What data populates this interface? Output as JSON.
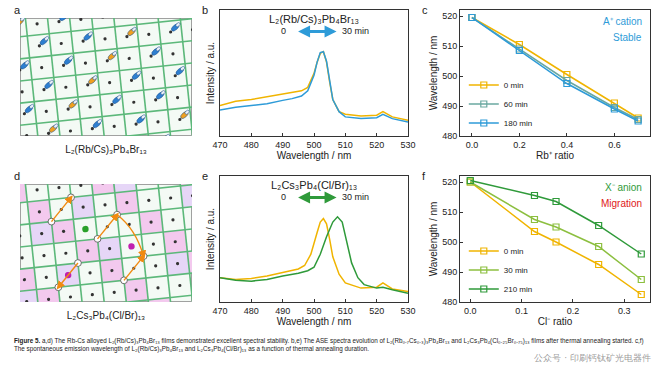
{
  "chart_data": [
    {
      "panel": "b",
      "type": "line",
      "title": "L₂(Rb/Cs)₃Pb₄Br₁₃",
      "x_label": "Wavelength / nm",
      "y_label": "Intensity / a.u.",
      "xlim": [
        470,
        530
      ],
      "xticks": [
        470,
        480,
        490,
        500,
        510,
        520,
        530
      ],
      "ylim": [
        0,
        1.45
      ],
      "yticks": [],
      "tick_labels": "x",
      "grid": false,
      "series": [
        {
          "name": "0",
          "color": "#f0b400",
          "line_style": "solid",
          "x": [
            470,
            475,
            480,
            485,
            490,
            493,
            496,
            498,
            500,
            501,
            502,
            503,
            504,
            505,
            506,
            508,
            510,
            515,
            520,
            522,
            525,
            530
          ],
          "values": [
            0.35,
            0.4,
            0.42,
            0.45,
            0.48,
            0.5,
            0.52,
            0.56,
            0.72,
            0.85,
            0.95,
            0.97,
            0.85,
            0.62,
            0.42,
            0.28,
            0.25,
            0.23,
            0.24,
            0.28,
            0.22,
            0.18
          ]
        },
        {
          "name": "30 min",
          "color": "#2e9bd8",
          "line_style": "solid",
          "x": [
            470,
            475,
            480,
            485,
            490,
            493,
            496,
            498,
            500,
            501,
            502,
            503,
            504,
            505,
            506,
            508,
            510,
            515,
            520,
            522,
            525,
            530
          ],
          "values": [
            0.3,
            0.33,
            0.35,
            0.37,
            0.41,
            0.43,
            0.46,
            0.52,
            0.7,
            0.85,
            0.96,
            0.97,
            0.86,
            0.63,
            0.42,
            0.28,
            0.22,
            0.2,
            0.21,
            0.25,
            0.2,
            0.16
          ]
        }
      ]
    },
    {
      "panel": "c",
      "type": "line",
      "x_label": "Rb⁺ ratio",
      "y_label": "Wavelength / nm",
      "xlim": [
        -0.05,
        0.75
      ],
      "xticks": [
        {
          "value": 0,
          "label": "0.0"
        },
        0.2,
        0.4,
        0.6
      ],
      "ylim": [
        480,
        522
      ],
      "yticks": [
        480,
        490,
        500,
        510,
        520
      ],
      "grid": false,
      "legend": "top-left",
      "marker": "square",
      "annotations": [
        {
          "text": "A⁺ cation",
          "color": "#2e9bd8"
        },
        {
          "text": "Stable",
          "color": "#2e9bd8"
        }
      ],
      "series": [
        {
          "name": "0 min",
          "color": "#f0b400",
          "x": [
            0,
            0.2,
            0.4,
            0.6,
            0.7
          ],
          "values": [
            519.5,
            510.5,
            500.5,
            491,
            486
          ]
        },
        {
          "name": "60 min",
          "color": "#6aa8a0",
          "x": [
            0,
            0.2,
            0.4,
            0.6,
            0.7
          ],
          "values": [
            519.5,
            509,
            498.5,
            489.5,
            485.5
          ]
        },
        {
          "name": "180 min",
          "color": "#2e9bd8",
          "x": [
            0,
            0.2,
            0.4,
            0.6,
            0.7
          ],
          "values": [
            519.5,
            508.5,
            497.5,
            489,
            485
          ]
        }
      ]
    },
    {
      "panel": "e",
      "type": "line",
      "title": "L₂Cs₃Pb₄(Cl/Br)₁₃",
      "x_label": "Wavelength / nm",
      "y_label": "Intensity / a.u.",
      "xlim": [
        470,
        530
      ],
      "xticks": [
        470,
        480,
        490,
        500,
        510,
        520,
        530
      ],
      "ylim": [
        0,
        1.45
      ],
      "yticks": [],
      "tick_labels": "x",
      "grid": false,
      "series": [
        {
          "name": "0",
          "color": "#f0b400",
          "line_style": "solid",
          "x": [
            470,
            475,
            480,
            485,
            490,
            495,
            497,
            499,
            501,
            502,
            503,
            504,
            505,
            506,
            508,
            510,
            515,
            520,
            522,
            525,
            530
          ],
          "values": [
            0.28,
            0.26,
            0.27,
            0.3,
            0.34,
            0.38,
            0.42,
            0.55,
            0.8,
            0.92,
            0.96,
            0.9,
            0.72,
            0.52,
            0.32,
            0.22,
            0.16,
            0.17,
            0.22,
            0.15,
            0.12
          ]
        },
        {
          "name": "30 min",
          "color": "#2f9a3a",
          "line_style": "solid",
          "x": [
            470,
            475,
            480,
            485,
            490,
            495,
            498,
            500,
            502,
            504,
            506,
            507.5,
            509,
            510,
            512,
            514,
            516,
            520,
            522,
            525,
            530
          ],
          "values": [
            0.28,
            0.25,
            0.24,
            0.26,
            0.3,
            0.33,
            0.36,
            0.4,
            0.55,
            0.75,
            0.92,
            0.98,
            0.92,
            0.75,
            0.45,
            0.28,
            0.2,
            0.16,
            0.17,
            0.14,
            0.1
          ]
        }
      ]
    },
    {
      "panel": "f",
      "type": "line",
      "x_label": "Cl⁻ ratio",
      "y_label": "Wavelength / nm",
      "xlim": [
        -0.02,
        0.35
      ],
      "xticks": [
        {
          "value": 0,
          "label": "0.0"
        },
        0.1,
        0.2,
        0.3
      ],
      "ylim": [
        480,
        522
      ],
      "yticks": [
        480,
        490,
        500,
        510,
        520
      ],
      "grid": false,
      "legend": "top-left",
      "marker": "square",
      "annotations": [
        {
          "text": "X⁻ anion",
          "color": "#2f9a3a"
        },
        {
          "text": "Migration",
          "color": "#e02020"
        }
      ],
      "series": [
        {
          "name": "0 min",
          "color": "#f0b400",
          "x": [
            0,
            0.125,
            0.167,
            0.25,
            0.333
          ],
          "values": [
            520,
            503.5,
            500,
            492.5,
            482.5
          ]
        },
        {
          "name": "30 min",
          "color": "#8cbf3f",
          "x": [
            0,
            0.125,
            0.167,
            0.25,
            0.333
          ],
          "values": [
            520,
            507.5,
            505,
            498.5,
            487.5
          ]
        },
        {
          "name": "210 min",
          "color": "#2f9a3a",
          "x": [
            0,
            0.125,
            0.167,
            0.25,
            0.333
          ],
          "values": [
            520.5,
            515.5,
            513.5,
            505.5,
            496
          ]
        }
      ]
    }
  ],
  "schematics": [
    {
      "panel": "a",
      "label": "L₂(Rb/Cs)₃Pb₄Br₁₃"
    },
    {
      "panel": "d",
      "label": "L₂Cs₃Pb₄(Cl/Br)₁₃"
    }
  ],
  "caption": {
    "label": "Figure 5.",
    "text": "a,d) The Rb-Cs alloyed L₂(Rb/Cs)₃Pb₄Br₁₃ films demonstrated excellent spectral stability. b,e) The ASE spectra evolution of L₂(Rb₀.₇Cs₀.₃)₃Pb₄Br₁₃ and L₂Cs₃Pb₄(Cl₀.₂₅Br₀.₇₅)₁₃ films after thermal annealing started. c,f) The spontaneous emission wavelength of L₂(Rb/Cs)₃Pb₄Br₁₃ and L₂Cs₃Pb₄(Cl/Br)₁₃ as a function of thermal annealing duration."
  },
  "watermark": "公众号 · 印刷钙钛矿光电器件"
}
